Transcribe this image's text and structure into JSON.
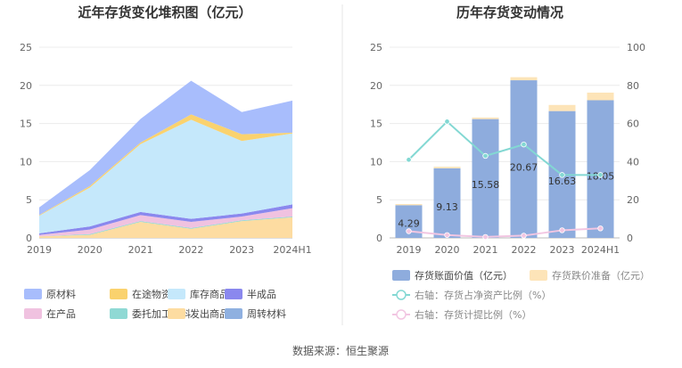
{
  "source": "数据来源：恒生聚源",
  "chart_data": [
    {
      "type": "area",
      "title": "近年存货变化堆积图（亿元）",
      "x": [
        "2019",
        "2020",
        "2021",
        "2022",
        "2023",
        "2024H1"
      ],
      "ylim": [
        0,
        25
      ],
      "yticks": [
        "0",
        "5",
        "10",
        "15",
        "20",
        "25"
      ],
      "stacked": true,
      "legend_position": "bottom",
      "series": [
        {
          "name": "发出商品",
          "color": "#fddca1",
          "values": [
            0.2,
            0.4,
            2.1,
            1.2,
            2.2,
            2.7
          ]
        },
        {
          "name": "委托加工材料",
          "color": "#8fd9d4",
          "values": [
            0.0,
            0.1,
            0.1,
            0.1,
            0.1,
            0.1
          ]
        },
        {
          "name": "在产品",
          "color": "#f0c2e0",
          "values": [
            0.2,
            0.6,
            0.8,
            0.8,
            0.5,
            1.1
          ]
        },
        {
          "name": "半成品",
          "color": "#8a88ee",
          "values": [
            0.2,
            0.4,
            0.4,
            0.4,
            0.4,
            0.5
          ]
        },
        {
          "name": "库存商品",
          "color": "#c5e8fb",
          "values": [
            2.3,
            5.1,
            8.9,
            13.0,
            9.5,
            9.3
          ]
        },
        {
          "name": "在途物资",
          "color": "#fad26e",
          "values": [
            0.1,
            0.2,
            0.2,
            0.7,
            0.9,
            0.1
          ]
        },
        {
          "name": "原材料",
          "color": "#a8bdfc",
          "values": [
            1.0,
            2.1,
            3.1,
            4.4,
            2.9,
            4.2
          ]
        },
        {
          "name": "周转材料",
          "color": "#8fb0e0",
          "values": [
            0,
            0,
            0,
            0,
            0,
            0
          ]
        }
      ],
      "legend_order": [
        "原材料",
        "在途物资",
        "库存商品",
        "半成品",
        "在产品",
        "委托加工材料",
        "发出商品",
        "周转材料"
      ]
    },
    {
      "type": "bar",
      "title": "历年存货变动情况",
      "categories": [
        "2019",
        "2020",
        "2021",
        "2022",
        "2023",
        "2024H1"
      ],
      "ylim": [
        0,
        25
      ],
      "yticks": [
        "0",
        "5",
        "10",
        "15",
        "20",
        "25"
      ],
      "y2lim": [
        0,
        100
      ],
      "y2ticks": [
        "0",
        "20",
        "40",
        "60",
        "80",
        "100"
      ],
      "stacked": true,
      "legend_position": "bottom",
      "series": [
        {
          "name": "存货账面价值（亿元）",
          "color": "#8eacdd",
          "values": [
            4.29,
            9.13,
            15.58,
            20.67,
            16.63,
            18.05
          ],
          "labels": [
            "4.29",
            "9.13",
            "15.58",
            "20.67",
            "16.63",
            "18.05"
          ]
        },
        {
          "name": "存货跌价准备（亿元）",
          "color": "#fde4b8",
          "values": [
            0.15,
            0.2,
            0.2,
            0.4,
            0.8,
            1.0
          ]
        },
        {
          "name": "右轴：存货占净资产比例（%）",
          "color": "#83d8d3",
          "axis": "right",
          "type": "line",
          "values": [
            41,
            61,
            43,
            49,
            33,
            33
          ]
        },
        {
          "name": "右轴：存货计提比例（%）",
          "color": "#f2c6e2",
          "axis": "right",
          "type": "line",
          "values": [
            3.5,
            1.5,
            0.5,
            1.2,
            4,
            5
          ]
        }
      ]
    }
  ]
}
